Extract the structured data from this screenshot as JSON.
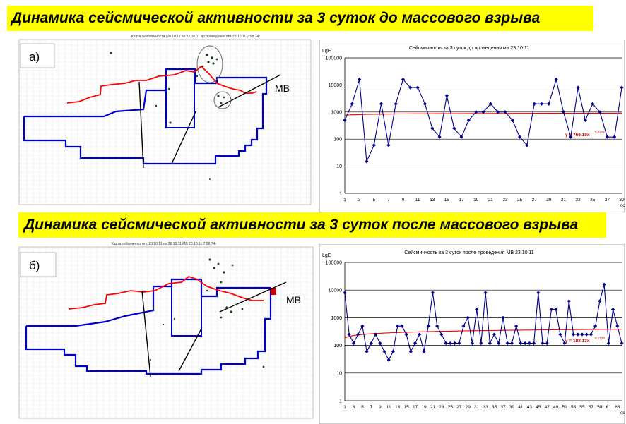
{
  "banners": {
    "top": "Динамика  сейсмической активности за 3 суток до массового взрыва",
    "bottom": "Динамика  сейсмической активности за 3 суток после массового взрыва"
  },
  "maps": [
    {
      "label": "а)",
      "mb_label": "МВ",
      "title": "Карта сейсмичности (20.10.11 по 22.10.11 до проведения МВ 23.10.11 7:58 74г"
    },
    {
      "label": "б)",
      "mb_label": "МВ",
      "title": "Карта сейсмичности с 23.10.11 по 26.10.11 МВ 23.10.11 7:58 74г"
    }
  ],
  "colors": {
    "banner": "#ffff00",
    "series_line": "#00008b",
    "trend_line": "#ff0000",
    "contour": "#0000cc",
    "front_line": "#ff0000"
  },
  "chart_data": [
    {
      "type": "line",
      "title": "Сейсмичность за 3 суток до проведения мв 23.10.11",
      "ylabel": "LgE",
      "xlabel_unit": "сс",
      "yscale": "log",
      "ylim": [
        1,
        100000
      ],
      "ytick_labels": [
        "1",
        "10",
        "100",
        "1000",
        "10000",
        "100000"
      ],
      "xtick_labels": [
        "1",
        "3",
        "5",
        "7",
        "9",
        "11",
        "13",
        "15",
        "17",
        "19",
        "21",
        "23",
        "25",
        "27",
        "29",
        "31",
        "33",
        "35",
        "37",
        "39"
      ],
      "x": [
        1,
        2,
        3,
        4,
        5,
        6,
        7,
        8,
        9,
        10,
        11,
        12,
        13,
        14,
        15,
        16,
        17,
        18,
        19,
        20,
        21,
        22,
        23,
        24,
        25,
        26,
        27,
        28,
        29,
        30,
        31,
        32,
        33,
        34,
        35,
        36,
        37,
        38,
        39
      ],
      "values": [
        500,
        2000,
        16000,
        15,
        60,
        2000,
        60,
        2000,
        16000,
        8000,
        8000,
        2000,
        250,
        120,
        4000,
        250,
        120,
        500,
        1000,
        1000,
        2000,
        1000,
        1000,
        500,
        120,
        60,
        2000,
        2000,
        2000,
        16000,
        1000,
        120,
        8000,
        500,
        2000,
        1000,
        120,
        120,
        8000
      ],
      "trend_values": [
        766.19,
        800,
        830,
        855,
        880,
        905
      ],
      "trend_equation": "y = 766.19x",
      "trend_exponent": "0,0476",
      "grid": true,
      "legend": "none"
    },
    {
      "type": "line",
      "title": "Сейсмичность за 3 суток после проведения МВ 23.10.11",
      "ylabel": "LgE",
      "xlabel_unit": "сс",
      "yscale": "log",
      "ylim": [
        1,
        100000
      ],
      "ytick_labels": [
        "1",
        "10",
        "100",
        "1000",
        "10000",
        "100000"
      ],
      "xtick_labels": [
        "1",
        "3",
        "5",
        "7",
        "9",
        "11",
        "13",
        "15",
        "17",
        "19",
        "21",
        "23",
        "25",
        "27",
        "29",
        "31",
        "33",
        "35",
        "37",
        "39",
        "41",
        "43",
        "45",
        "47",
        "49",
        "51",
        "53",
        "55",
        "57",
        "59",
        "61",
        "63"
      ],
      "x": [
        1,
        2,
        3,
        4,
        5,
        6,
        7,
        8,
        9,
        10,
        11,
        12,
        13,
        14,
        15,
        16,
        17,
        18,
        19,
        20,
        21,
        22,
        23,
        24,
        25,
        26,
        27,
        28,
        29,
        30,
        31,
        32,
        33,
        34,
        35,
        36,
        37,
        38,
        39,
        40,
        41,
        42,
        43,
        44,
        45,
        46,
        47,
        48,
        49,
        50,
        51,
        52,
        53,
        54,
        55,
        56,
        57,
        58,
        59,
        60,
        61,
        62,
        63,
        64
      ],
      "values": [
        8000,
        250,
        120,
        250,
        500,
        60,
        120,
        250,
        120,
        60,
        30,
        60,
        500,
        500,
        250,
        60,
        120,
        250,
        60,
        500,
        8000,
        500,
        250,
        120,
        120,
        120,
        120,
        500,
        1000,
        120,
        2000,
        120,
        8000,
        120,
        250,
        120,
        1000,
        120,
        120,
        500,
        120,
        120,
        120,
        120,
        8000,
        120,
        120,
        2000,
        2000,
        250,
        120,
        4000,
        250,
        250,
        250,
        250,
        250,
        500,
        4000,
        16000,
        120,
        2000,
        500,
        120
      ],
      "trend_values": [
        188.13,
        230,
        260,
        285,
        305,
        320
      ],
      "trend_equation": "y = 188.13x",
      "trend_exponent": "0,1728",
      "grid": true,
      "legend": "none"
    }
  ]
}
